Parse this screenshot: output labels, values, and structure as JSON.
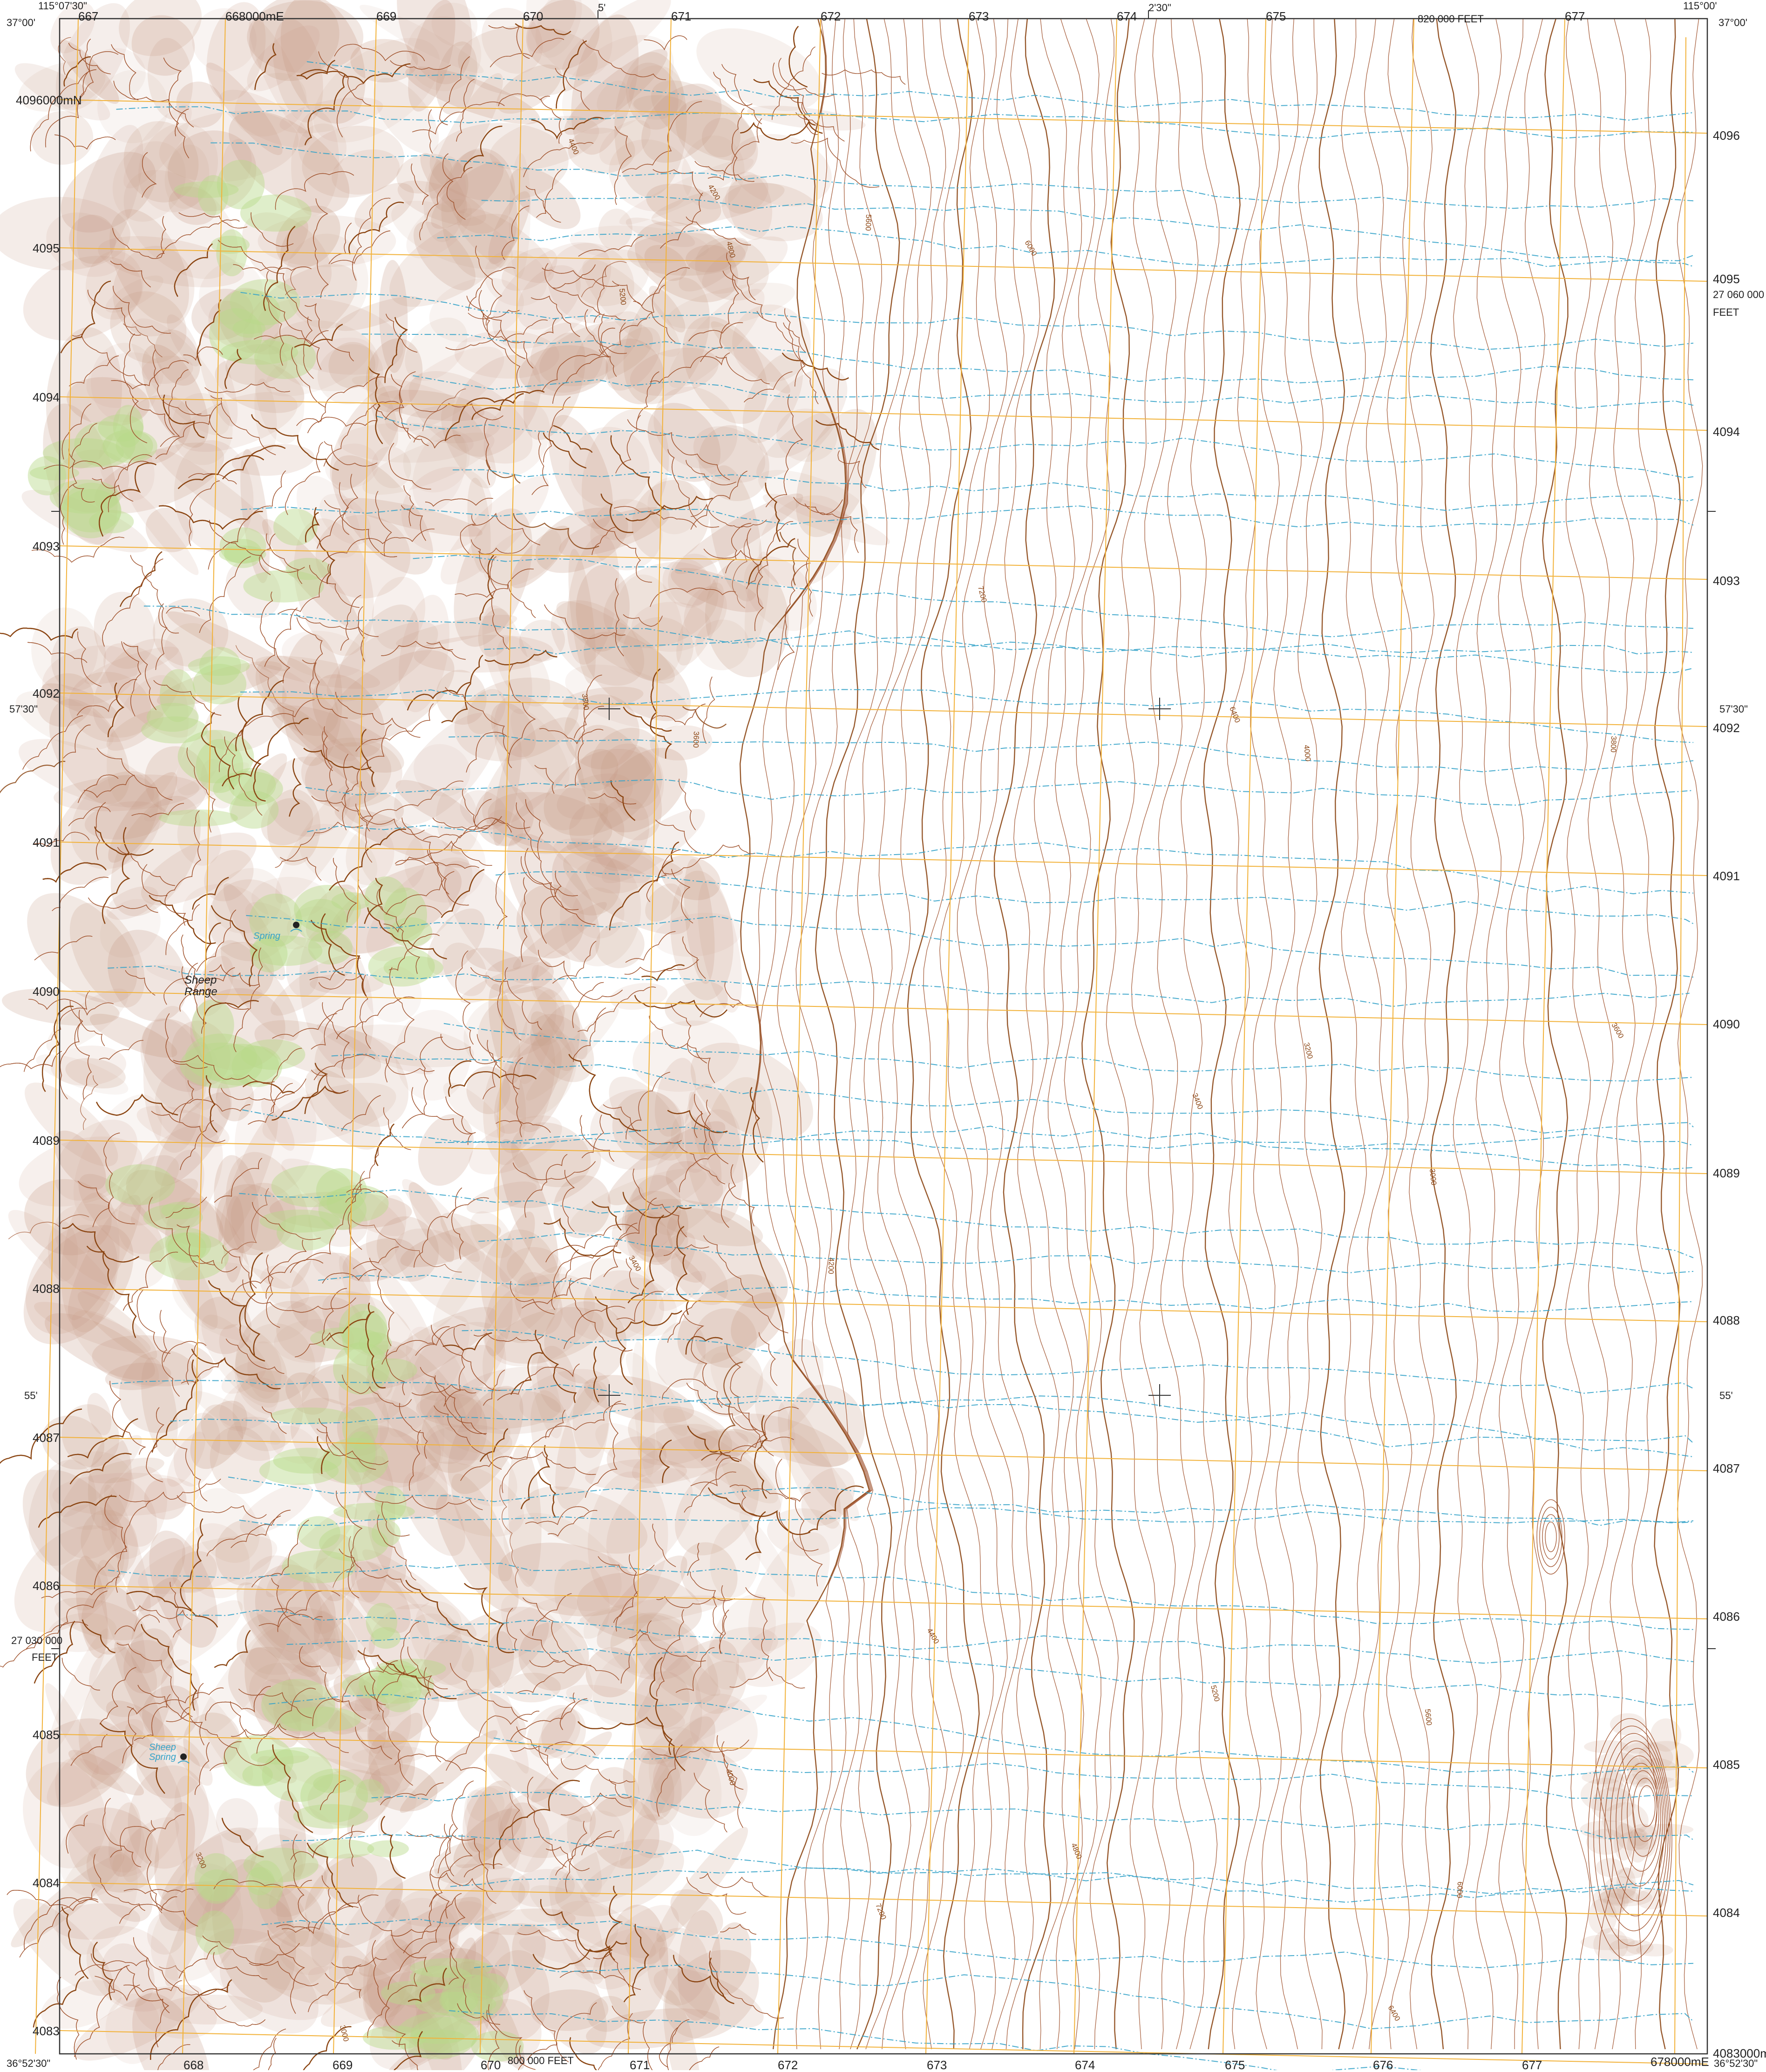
{
  "map": {
    "colors": {
      "background": "#ffffff",
      "contour": "#a0522d",
      "contour_index": "#8b4513",
      "relief_shade": "#c69c86",
      "vegetation": "#b8d98a",
      "grid": "#f2b23a",
      "stream": "#35a3c9",
      "neatline": "#333333"
    },
    "corners": {
      "top_left_lon": "115°07'30\"",
      "top_left_lat": "37°00'",
      "top_right_lon": "115°00'",
      "top_right_lat": "37°00'",
      "bottom_left_lat": "36°52'30\"",
      "bottom_right_lat": "36°52'30\""
    },
    "top_labels": {
      "e67": "667",
      "e68": "668000mE",
      "e69": "669",
      "e70": "670",
      "mid_5": "5'",
      "e71": "671",
      "e72": "672",
      "e73": "673",
      "e74": "674",
      "mid_230": "2'30\"",
      "e75": "675",
      "feet_820": "820 000 FEET",
      "e77": "677"
    },
    "bottom_labels": {
      "e68": "668",
      "e69": "669",
      "e70": "670",
      "feet_800": "800 000 FEET",
      "e71": "671",
      "e72": "672",
      "e73": "673",
      "e74": "674",
      "e75": "675",
      "e76": "676",
      "e77": "677",
      "e78": "678000mE"
    },
    "left_labels": {
      "n96": "4096000mN",
      "n95": "4095",
      "n94": "4094",
      "n93": "4093",
      "n92": "4092",
      "lat_5730": "57'30\"",
      "n91": "4091",
      "n90": "4090",
      "n89": "4089",
      "n88": "4088",
      "lat_55": "55'",
      "n87": "4087",
      "n86": "4086",
      "feet_27030": "27 030 000",
      "feet_word": "FEET",
      "n85": "4085",
      "n84": "4084",
      "n83": "4083"
    },
    "right_labels": {
      "n96": "4096",
      "n95": "4095",
      "feet_27060": "27 060 000",
      "feet_word": "FEET",
      "n94": "4094",
      "n93": "4093",
      "lat_5730": "57'30\"",
      "n92": "4092",
      "n91": "4091",
      "n90": "4090",
      "n89": "4089",
      "n88": "4088",
      "lat_55": "55'",
      "n87": "4087",
      "n86": "4086",
      "n85": "4085",
      "n84": "4084",
      "n83": "4083000mN"
    },
    "features": {
      "sheep_range": "Sheep\nRange",
      "spring_upper": "Spring",
      "spring_lower": "Sheep\nSpring"
    },
    "contour_values": [
      "4200",
      "4400",
      "4800",
      "5200",
      "5600",
      "6000",
      "6400",
      "7200",
      "4000",
      "3800",
      "3600",
      "3400",
      "3200",
      "3000"
    ]
  }
}
